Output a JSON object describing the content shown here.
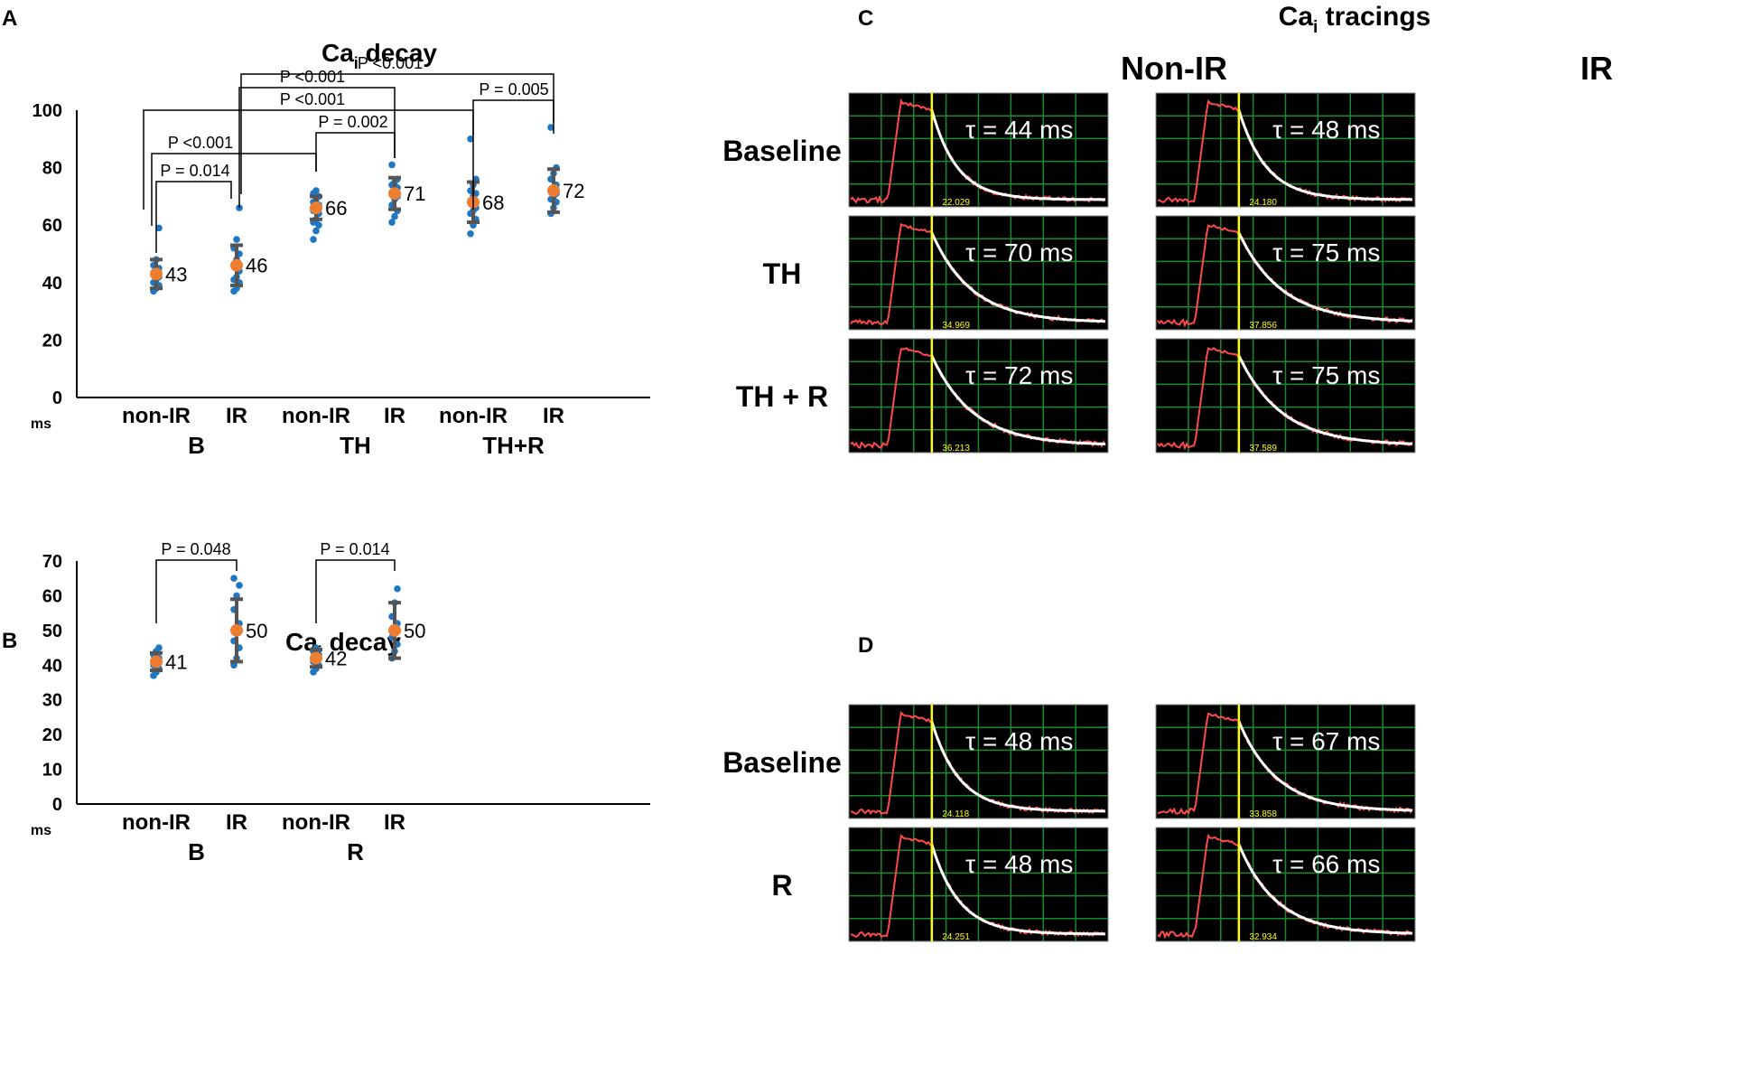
{
  "panels": {
    "A": "A",
    "B": "B",
    "C": "C",
    "D": "D"
  },
  "colors": {
    "point": "#1f77c4",
    "mean": "#ed7d31",
    "errorbar": "#555555",
    "trace_bg": "#000000",
    "grid": "#1a8a2e",
    "signal": "#ff4a4a",
    "fit": "#ffffff",
    "marker": "#ffff00"
  },
  "chart_data": [
    {
      "id": "A",
      "type": "scatter",
      "title_main": "Ca",
      "title_sub": "i",
      "title_rest": " decay",
      "ylabel": "ms",
      "ylim": [
        0,
        100
      ],
      "yticks": [
        0,
        20,
        40,
        60,
        80,
        100
      ],
      "categories": [
        "non-IR",
        "IR",
        "non-IR",
        "IR",
        "non-IR",
        "IR"
      ],
      "groups": [
        "B",
        "TH",
        "TH+R"
      ],
      "means": [
        43,
        46,
        66,
        71,
        68,
        72
      ],
      "mean_labels": [
        "43",
        "46",
        "66",
        "71",
        "68",
        "72"
      ],
      "sd": [
        5,
        7,
        4,
        5.5,
        7,
        7.5
      ],
      "points": [
        [
          37,
          38,
          39,
          40,
          41,
          42,
          43,
          44,
          45,
          46,
          48,
          59
        ],
        [
          37,
          38,
          40,
          41,
          42,
          44,
          46,
          48,
          50,
          52,
          55,
          66
        ],
        [
          55,
          58,
          60,
          61,
          62,
          64,
          65,
          66,
          67,
          68,
          69,
          70,
          71,
          72
        ],
        [
          61,
          63,
          65,
          67,
          69,
          70,
          71,
          72,
          73,
          74,
          75,
          76,
          81
        ],
        [
          57,
          60,
          62,
          64,
          65,
          66,
          68,
          70,
          71,
          72,
          74,
          76,
          90
        ],
        [
          64,
          66,
          68,
          69,
          70,
          71,
          72,
          73,
          74,
          76,
          78,
          80,
          94
        ]
      ],
      "comparisons": [
        {
          "label": "P = 0.014",
          "from": 0,
          "to": 1
        },
        {
          "label": "P <0.001",
          "from": 0,
          "to": 2
        },
        {
          "label": "P = 0.002",
          "from": 2,
          "to": 3
        },
        {
          "label": "P <0.001",
          "from": 0,
          "to": 4
        },
        {
          "label": "P = 0.005",
          "from": 4,
          "to": 5
        },
        {
          "label": "P <0.001",
          "from": 1,
          "to": 3
        },
        {
          "label": "P <0.001",
          "from": 1,
          "to": 5
        }
      ]
    },
    {
      "id": "B",
      "type": "scatter",
      "title_main": "Ca",
      "title_sub": "i",
      "title_rest": " decay",
      "ylabel": "ms",
      "ylim": [
        0,
        70
      ],
      "yticks": [
        0,
        10,
        20,
        30,
        40,
        50,
        60,
        70
      ],
      "categories": [
        "non-IR",
        "IR",
        "non-IR",
        "IR"
      ],
      "groups": [
        "B",
        "R"
      ],
      "means": [
        41,
        50,
        42,
        50
      ],
      "mean_labels": [
        "41",
        "50",
        "42",
        "50"
      ],
      "sd": [
        2.5,
        9,
        2.5,
        8
      ],
      "points": [
        [
          37,
          38,
          39,
          40,
          41,
          42,
          43,
          44,
          45
        ],
        [
          40,
          42,
          45,
          47,
          50,
          52,
          56,
          60,
          63,
          65
        ],
        [
          38,
          39,
          40,
          41,
          42,
          43,
          44,
          45
        ],
        [
          42,
          44,
          46,
          48,
          50,
          52,
          54,
          58,
          62
        ]
      ],
      "comparisons": [
        {
          "label": "P = 0.048",
          "from": 0,
          "to": 1
        },
        {
          "label": "P = 0.014",
          "from": 2,
          "to": 3
        }
      ]
    }
  ],
  "tracings": {
    "title_main": "Ca",
    "title_sub": "i",
    "title_rest": " tracings",
    "col_headers": [
      "Non-IR",
      "IR"
    ],
    "C_rows": [
      "Baseline",
      "TH",
      "TH + R"
    ],
    "D_rows": [
      "Baseline",
      "R"
    ],
    "C": [
      [
        {
          "tau": "τ = 44 ms",
          "readout": "22.029",
          "decay": 44
        },
        {
          "tau": "τ = 48 ms",
          "readout": "24.180",
          "decay": 48
        }
      ],
      [
        {
          "tau": "τ = 70 ms",
          "readout": "34.969",
          "decay": 70
        },
        {
          "tau": "τ = 75 ms",
          "readout": "37.856",
          "decay": 75
        }
      ],
      [
        {
          "tau": "τ = 72 ms",
          "readout": "36.213",
          "decay": 72
        },
        {
          "tau": "τ = 75 ms",
          "readout": "37.589",
          "decay": 75
        }
      ]
    ],
    "D": [
      [
        {
          "tau": "τ = 48 ms",
          "readout": "24.118",
          "decay": 48
        },
        {
          "tau": "τ = 67 ms",
          "readout": "33.858",
          "decay": 67
        }
      ],
      [
        {
          "tau": "τ = 48 ms",
          "readout": "24.251",
          "decay": 48
        },
        {
          "tau": "τ = 66 ms",
          "readout": "32.934",
          "decay": 66
        }
      ]
    ]
  }
}
